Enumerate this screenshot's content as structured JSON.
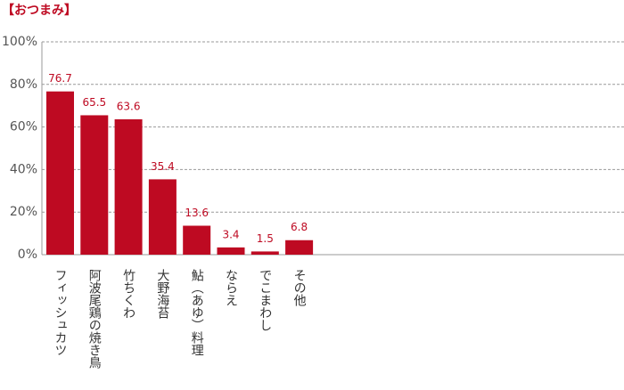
{
  "chart_data": {
    "type": "bar",
    "title": "【おつまみ】",
    "categories": [
      "フィッシュカツ",
      "阿波尾鶏の焼き鳥",
      "竹ちくわ",
      "大野海苔",
      "鮎（あゆ）料理",
      "ならえ",
      "でこまわし",
      "その他"
    ],
    "values": [
      76.7,
      65.5,
      63.6,
      35.4,
      13.6,
      3.4,
      1.5,
      6.8
    ],
    "color": "#be0a22",
    "ylim": [
      0,
      100
    ],
    "yticks": [
      {
        "value": 0,
        "label": "0%"
      },
      {
        "value": 20,
        "label": "20%"
      },
      {
        "value": 40,
        "label": "40%"
      },
      {
        "value": 60,
        "label": "60%"
      },
      {
        "value": 80,
        "label": "80%"
      },
      {
        "value": 100,
        "label": "100%"
      }
    ],
    "grid": true
  }
}
